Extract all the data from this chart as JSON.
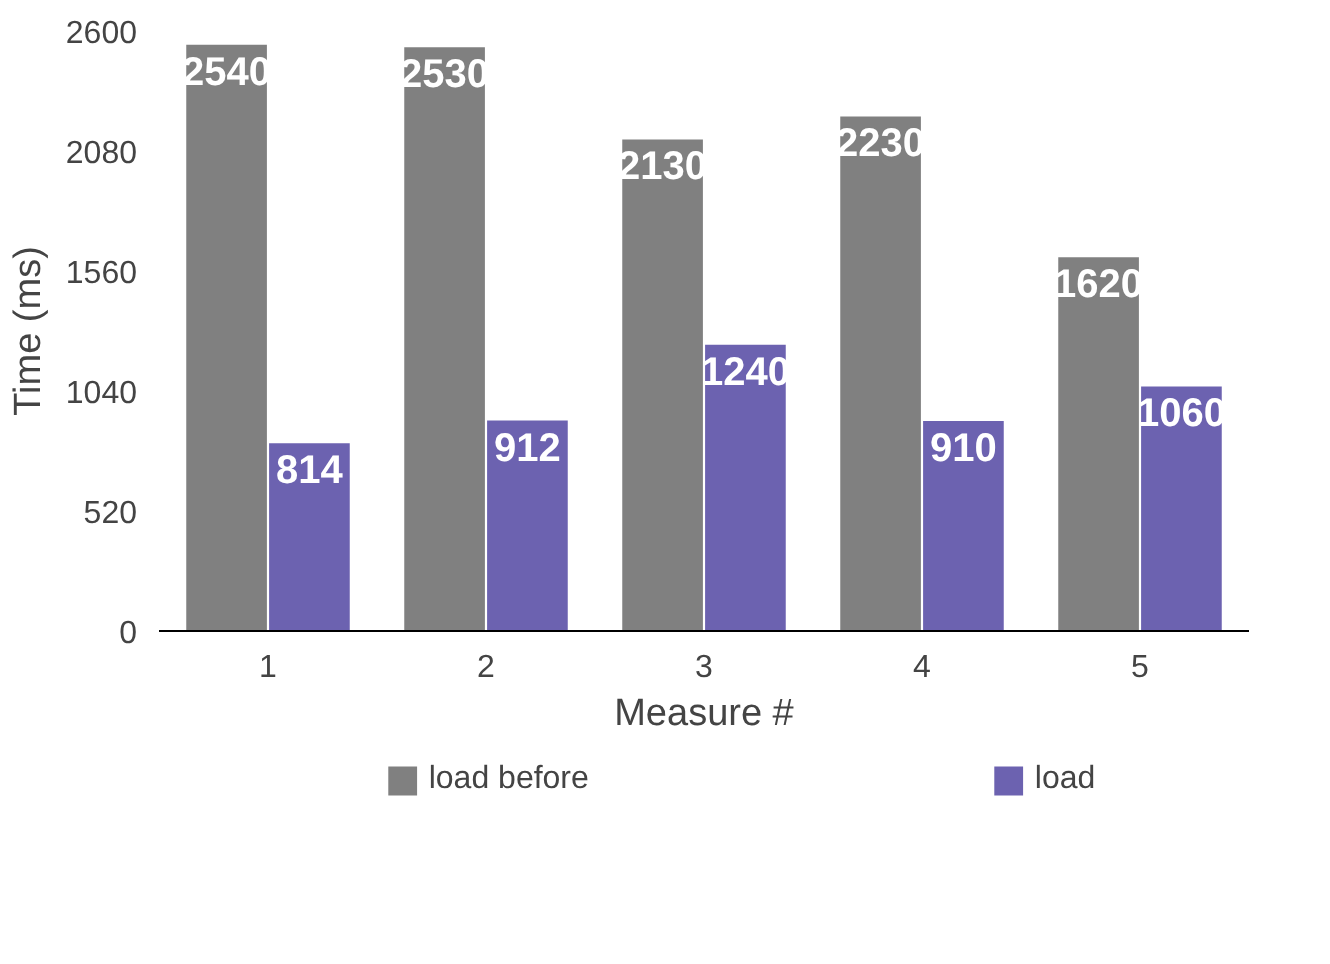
{
  "chart_data": {
    "type": "bar",
    "xlabel": "Measure #",
    "ylabel": "Time (ms)",
    "categories": [
      "1",
      "2",
      "3",
      "4",
      "5"
    ],
    "series": [
      {
        "name": "load before",
        "color": "#808080",
        "values": [
          2540,
          2530,
          2130,
          2230,
          1620
        ]
      },
      {
        "name": "load",
        "color": "#6c62b0",
        "values": [
          814,
          912,
          1240,
          910,
          1060
        ]
      }
    ],
    "ylim": [
      0,
      2600
    ],
    "yticks": [
      0,
      520,
      1040,
      1560,
      2080,
      2600
    ],
    "data_labels": true,
    "legend": "bottom",
    "grid": false
  }
}
